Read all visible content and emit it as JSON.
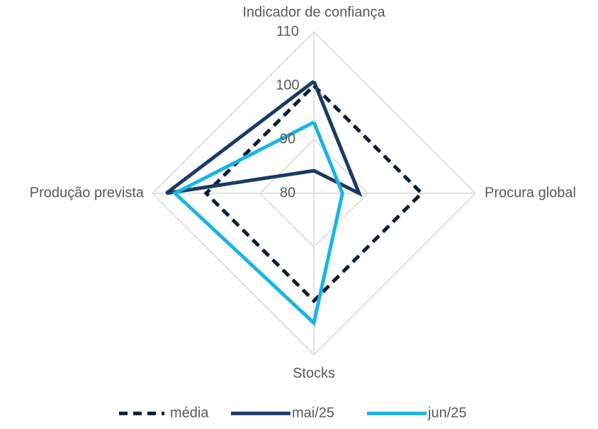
{
  "chart_data": {
    "type": "radar",
    "categories": [
      "Indicador de confiança",
      "Procura global",
      "Stocks",
      "Produção prevista"
    ],
    "ylim": [
      80,
      110
    ],
    "yticks": [
      80,
      90,
      100,
      110
    ],
    "grid": true,
    "legend": "bottom",
    "series": [
      {
        "name": "média",
        "color": "#0d1b33",
        "dash": true,
        "values": [
          100,
          100,
          100,
          100
        ]
      },
      {
        "name": "mai/25",
        "color": "#1a3a63",
        "dash": false,
        "values": [
          100.8,
          88.4,
          75.8,
          107.4
        ]
      },
      {
        "name": "jun/25",
        "color": "#18b4e8",
        "dash": false,
        "values": [
          93.2,
          85.3,
          104.1,
          105.8
        ]
      }
    ]
  }
}
